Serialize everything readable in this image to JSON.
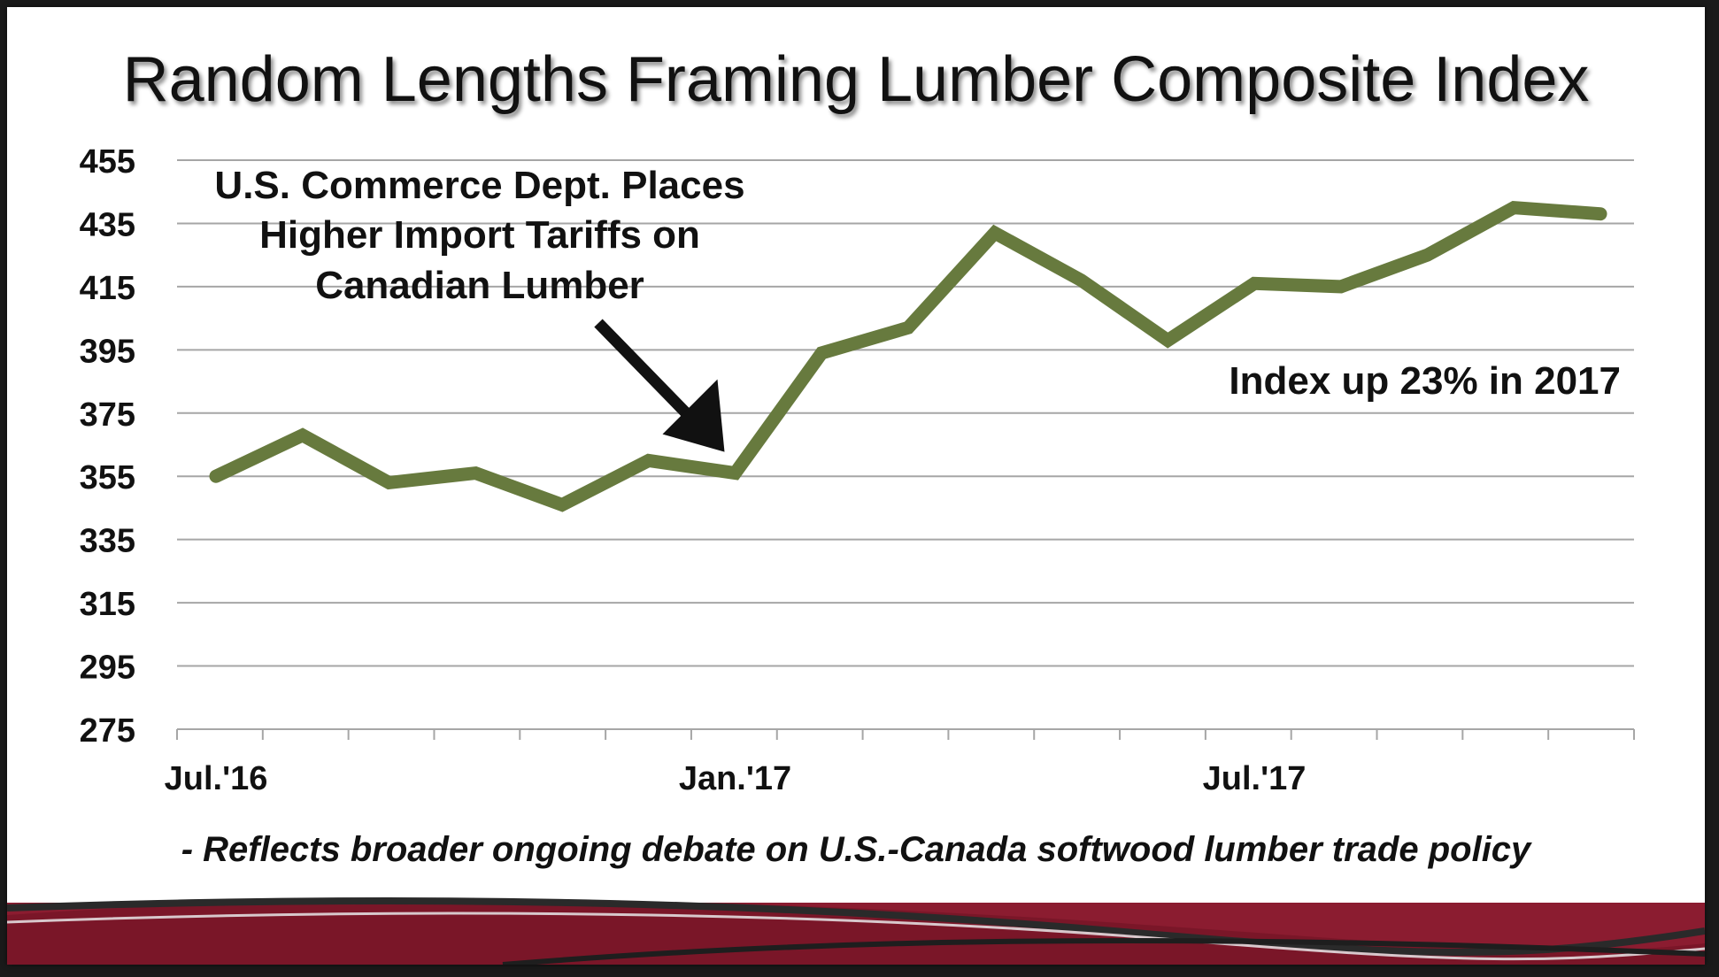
{
  "title": "Random Lengths Framing Lumber Composite Index",
  "footnote": "- Reflects broader ongoing debate on U.S.-Canada softwood lumber trade policy",
  "colors": {
    "line": "#677a3e",
    "grid": "#a6a6a6",
    "text": "#111111",
    "band": "#8b1c30"
  },
  "chart_data": {
    "type": "line",
    "title": "Random Lengths Framing Lumber Composite Index",
    "xlabel": "",
    "ylabel": "",
    "ylim": [
      275,
      455
    ],
    "yticks": [
      275,
      295,
      315,
      335,
      355,
      375,
      395,
      415,
      435,
      455
    ],
    "grid": true,
    "x_tick_labels": [
      {
        "label": "Jul.'16",
        "index": 0
      },
      {
        "label": "Jan.'17",
        "index": 6
      },
      {
        "label": "Jul.'17",
        "index": 12
      }
    ],
    "series": [
      {
        "values": [
          355,
          368,
          353,
          356,
          346,
          360,
          356,
          394,
          402,
          432,
          417,
          398,
          416,
          415,
          425,
          440,
          438
        ]
      }
    ],
    "annotations": [
      {
        "text": [
          "U.S. Commerce Dept. Places",
          "Higher Import Tariffs on",
          "Canadian Lumber"
        ],
        "arrow_to_index": 6
      },
      {
        "text": "Index up 23% in 2017"
      }
    ]
  }
}
